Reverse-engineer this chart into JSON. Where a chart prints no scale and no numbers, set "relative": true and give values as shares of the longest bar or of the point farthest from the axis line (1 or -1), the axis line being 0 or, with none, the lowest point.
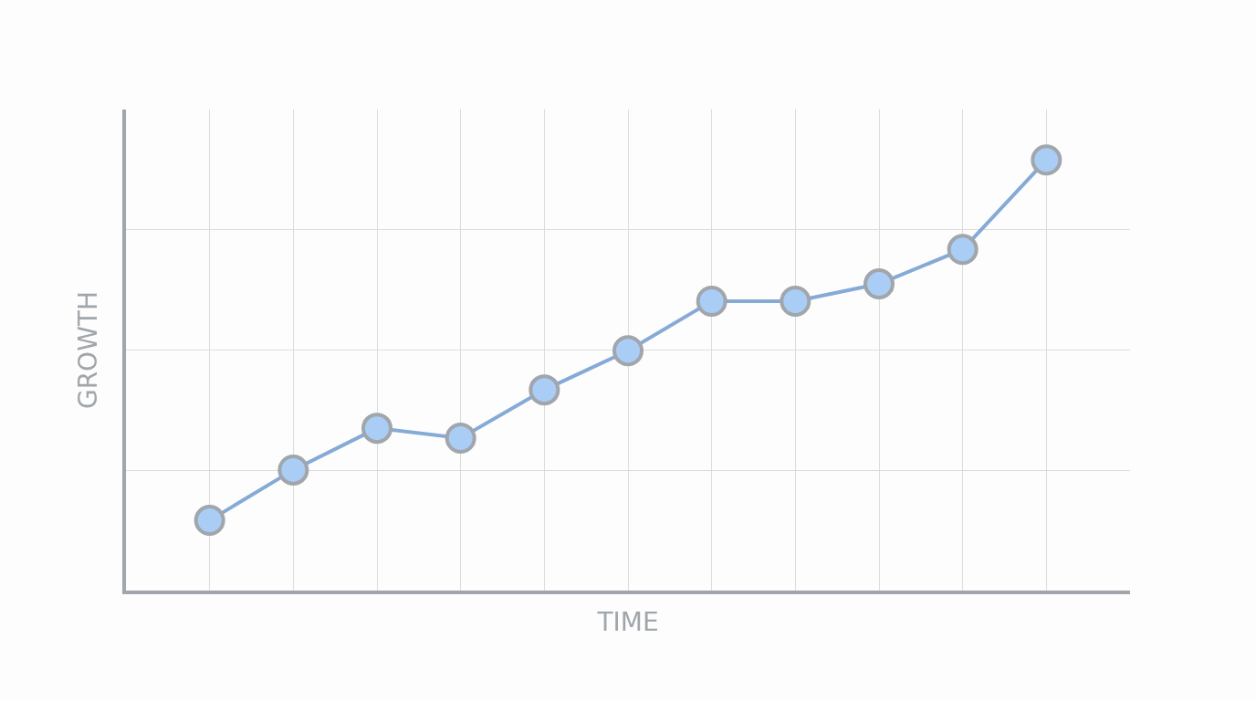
{
  "chart_data": {
    "type": "line",
    "xlabel": "TIME",
    "ylabel": "GROWTH",
    "relative": true,
    "grid": true,
    "marker": "circle",
    "line_style": "solid",
    "legend": false,
    "categories": [
      null,
      null,
      null,
      null,
      null,
      null,
      null,
      null,
      null,
      null,
      null
    ],
    "series": [
      {
        "color": "#86aad6",
        "values": [
          0.163,
          0.28,
          0.377,
          0.354,
          0.466,
          0.557,
          0.672,
          0.672,
          0.712,
          0.792,
          1.0
        ]
      }
    ]
  }
}
